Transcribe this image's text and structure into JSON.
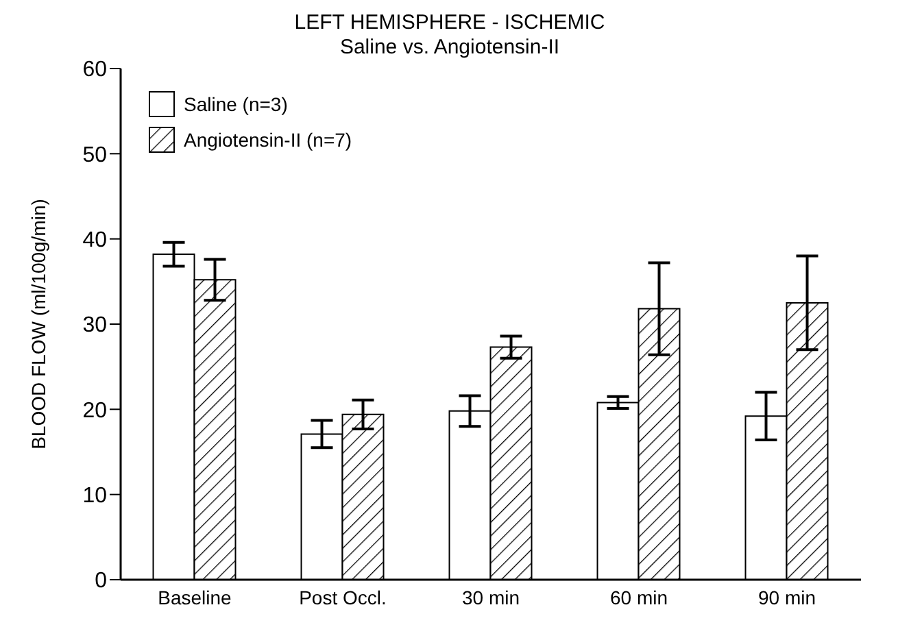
{
  "chart_data": {
    "type": "bar",
    "title": "LEFT HEMISPHERE - ISCHEMIC",
    "subtitle": "Saline vs. Angiotensin-II",
    "ylabel": "BLOOD FLOW (ml/100g/min)",
    "categories": [
      "Baseline",
      "Post Occl.",
      "30 min",
      "60 min",
      "90 min"
    ],
    "series": [
      {
        "name": "Saline (n=3)",
        "color": "#ffffff",
        "values": [
          38.2,
          17.1,
          19.8,
          20.8,
          19.2
        ],
        "errors": [
          1.4,
          1.6,
          1.8,
          0.7,
          2.8
        ]
      },
      {
        "name": "Angiotensin-II (n=7)",
        "color": "#000000",
        "values": [
          35.2,
          19.4,
          27.3,
          31.8,
          32.5
        ],
        "errors": [
          2.4,
          1.7,
          1.3,
          5.4,
          5.5
        ]
      }
    ],
    "ylim": [
      0,
      60
    ],
    "yticks": [
      0,
      10,
      20,
      30,
      40,
      50,
      60
    ],
    "grid": false,
    "legend": "top left"
  }
}
